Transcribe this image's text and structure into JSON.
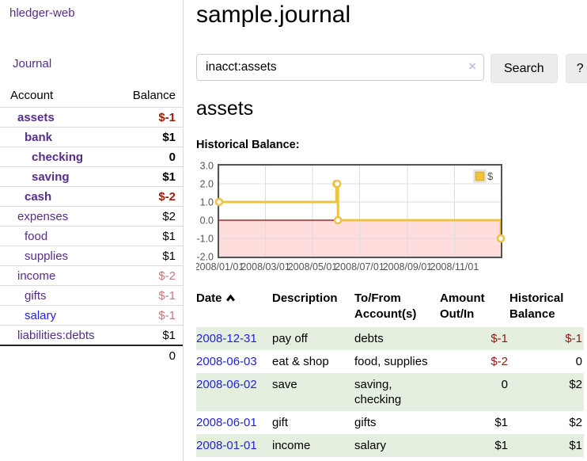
{
  "app": {
    "title": "hledger-web"
  },
  "sidebar": {
    "journal_link": "Journal",
    "table_headers": {
      "account": "Account",
      "balance": "Balance"
    },
    "accounts": [
      {
        "name": "assets",
        "balance": "$-1",
        "depth": 0,
        "bold": true
      },
      {
        "name": "bank",
        "balance": "$1",
        "depth": 1,
        "bold": true
      },
      {
        "name": "checking",
        "balance": "0",
        "depth": 2,
        "bold": true
      },
      {
        "name": "saving",
        "balance": "$1",
        "depth": 2,
        "bold": true
      },
      {
        "name": "cash",
        "balance": "$-2",
        "depth": 1,
        "bold": true
      },
      {
        "name": "expenses",
        "balance": "$2",
        "depth": 0,
        "bold": false
      },
      {
        "name": "food",
        "balance": "$1",
        "depth": 1,
        "bold": false
      },
      {
        "name": "supplies",
        "balance": "$1",
        "depth": 1,
        "bold": false
      },
      {
        "name": "income",
        "balance": "$-2",
        "depth": 0,
        "bold": false
      },
      {
        "name": "gifts",
        "balance": "$-1",
        "depth": 1,
        "bold": false
      },
      {
        "name": "salary",
        "balance": "$-1",
        "depth": 1,
        "bold": false,
        "unvisited": true
      },
      {
        "name": "liabilities:debts",
        "balance": "$1",
        "depth": 0,
        "bold": false
      }
    ],
    "total_balance": "0"
  },
  "main": {
    "title": "sample.journal",
    "search": {
      "value": "inacct:assets",
      "clear_icon": "×",
      "button_label": "Search",
      "help_label": "?"
    },
    "account_heading": "assets",
    "chart_heading": "Historical Balance:"
  },
  "chart_data": {
    "type": "line",
    "title": "Historical Balance",
    "steps": true,
    "series": [
      {
        "name": "$",
        "color": "#edc240",
        "points": [
          [
            "2008-01-01",
            1
          ],
          [
            "2008-06-01",
            2
          ],
          [
            "2008-06-02",
            2
          ],
          [
            "2008-06-03",
            0
          ],
          [
            "2008-12-31",
            -1
          ]
        ]
      }
    ],
    "x_ticks": [
      "2008/01/01",
      "2008/03/01",
      "2008/05/01",
      "2008/07/01",
      "2008/09/01",
      "2008/11/01"
    ],
    "y_ticks": [
      "3.0",
      "2.0",
      "1.0",
      "0.0",
      "-1.0",
      "-2.0"
    ],
    "ylim": [
      -2,
      3
    ],
    "xrange": [
      "2008-01-01",
      "2008-12-31"
    ],
    "grid": true,
    "legend": {
      "position": "top-right",
      "label": "$"
    },
    "negative_fill": "#ffdddd",
    "zero_line": "#990000"
  },
  "register": {
    "columns": [
      "Date",
      "Description",
      "To/From Account(s)",
      "Amount Out/In",
      "Historical Balance"
    ],
    "sorted_column": "Date",
    "sort_direction": "asc",
    "rows": [
      {
        "date": "2008-12-31",
        "description": "pay off",
        "accounts": "debts",
        "amount": "$-1",
        "balance": "$-1"
      },
      {
        "date": "2008-06-03",
        "description": "eat & shop",
        "accounts": "food, supplies",
        "amount": "$-2",
        "balance": "0"
      },
      {
        "date": "2008-06-02",
        "description": "save",
        "accounts": "saving, checking",
        "amount": "0",
        "balance": "$2"
      },
      {
        "date": "2008-06-01",
        "description": "gift",
        "accounts": "gifts",
        "amount": "$1",
        "balance": "$2"
      },
      {
        "date": "2008-01-01",
        "description": "income",
        "accounts": "salary",
        "amount": "$1",
        "balance": "$1"
      }
    ]
  },
  "colors": {
    "link_purple": "#552d8b",
    "link_blue": "#2222dd",
    "negative_strong": "#9e1b0b",
    "negative_soft": "#c7767c",
    "row_green": "#e4efdf",
    "chart_line": "#edc240"
  }
}
